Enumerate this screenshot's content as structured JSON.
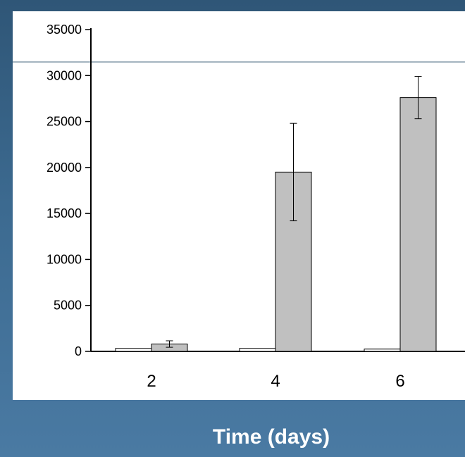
{
  "chart_data": {
    "type": "bar",
    "categories": [
      "2",
      "4",
      "6"
    ],
    "series": [
      {
        "values": [
          330,
          330,
          250
        ],
        "errors": [
          0,
          0,
          0
        ],
        "color": "#ffffff"
      },
      {
        "values": [
          800,
          19500,
          27600
        ],
        "errors": [
          350,
          5300,
          2300
        ],
        "color": "#c0c0c0"
      }
    ],
    "yticks": [
      "0",
      "5000",
      "10000",
      "15000",
      "20000",
      "25000",
      "30000",
      "35000"
    ],
    "ylim": [
      0,
      35000
    ],
    "xlabel": "Time (days)",
    "ylabel": "",
    "title": "",
    "grid": false
  }
}
